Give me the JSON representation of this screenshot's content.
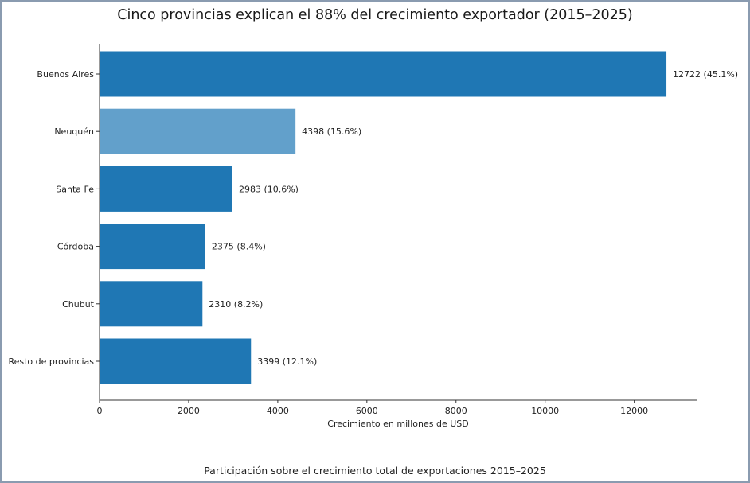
{
  "chart_data": {
    "type": "bar",
    "orientation": "horizontal",
    "title": "Cinco provincias explican el 88% del crecimiento exportador (2015–2025)",
    "xlabel": "Crecimiento en millones de USD",
    "caption": "Participación sobre el crecimiento total de exportaciones 2015–2025",
    "categories": [
      "Buenos Aires",
      "Neuquén",
      "Santa Fe",
      "Córdoba",
      "Chubut",
      "Resto de provincias"
    ],
    "values": [
      12722,
      4398,
      2983,
      2375,
      2310,
      3399
    ],
    "value_labels": [
      "12722  (45.1%)",
      "4398  (15.6%)",
      "2983  (10.6%)",
      "2375  (8.4%)",
      "2310  (8.2%)",
      "3399  (12.1%)"
    ],
    "colors": [
      "#1f77b4",
      "#62a0cb",
      "#1f77b4",
      "#1f77b4",
      "#1f77b4",
      "#1f77b4"
    ],
    "xlim": [
      0,
      13400
    ],
    "xticks": [
      0,
      2000,
      4000,
      6000,
      8000,
      10000,
      12000
    ],
    "grid": false
  }
}
